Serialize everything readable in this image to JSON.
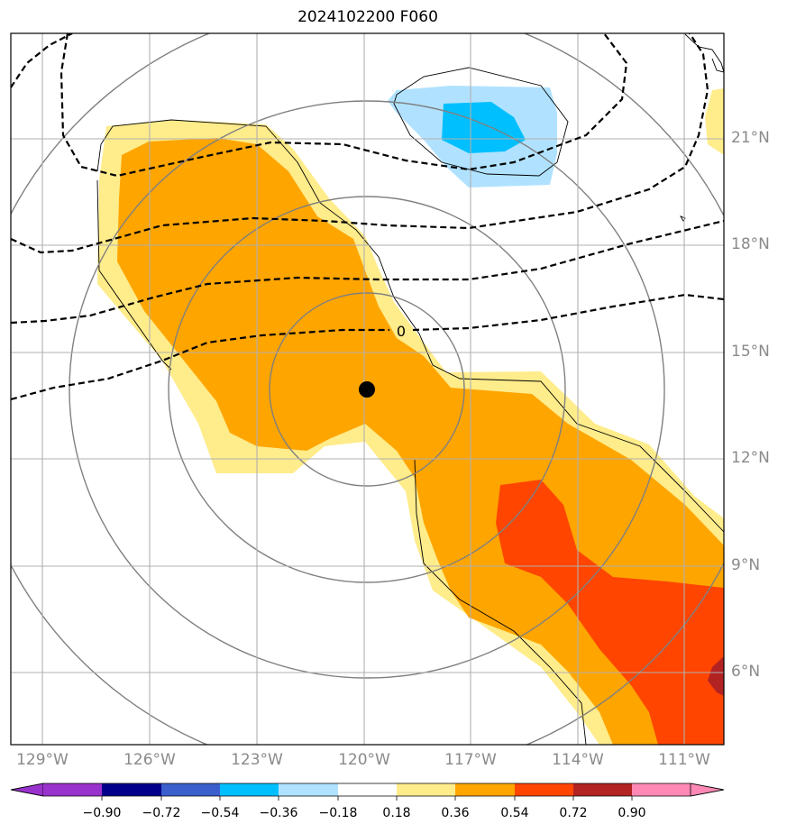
{
  "title": "2024102200 F060",
  "contour_label": "0",
  "longitude_labels": [
    "129°W",
    "126°W",
    "123°W",
    "120°W",
    "117°W",
    "114°W",
    "111°W"
  ],
  "latitude_labels": [
    "21°N",
    "18°N",
    "15°N",
    "12°N",
    "9°N",
    "6°N"
  ],
  "colorbar": {
    "ticks": [
      "−0.90",
      "−0.72",
      "−0.54",
      "−0.36",
      "−0.18",
      "0.18",
      "0.36",
      "0.54",
      "0.72",
      "0.90"
    ],
    "colors": [
      "#9932cc",
      "#00008b",
      "#3a5fcd",
      "#00bfff",
      "#b0e2ff",
      "#ffffff",
      "#ffec8b",
      "#ffa500",
      "#ff4500",
      "#b22222",
      "#ff89b4"
    ]
  },
  "map": {
    "lon_range": [
      -130,
      -110
    ],
    "lat_range": [
      4,
      24
    ],
    "storm_center": {
      "lon": -119.9,
      "lat": 13.9
    },
    "fill_colors": {
      "light_yellow": "#ffec8b",
      "orange": "#ffa500",
      "red_orange": "#ff4500",
      "dark_red": "#b22222",
      "light_blue": "#b0e2ff",
      "blue": "#00bfff"
    }
  }
}
